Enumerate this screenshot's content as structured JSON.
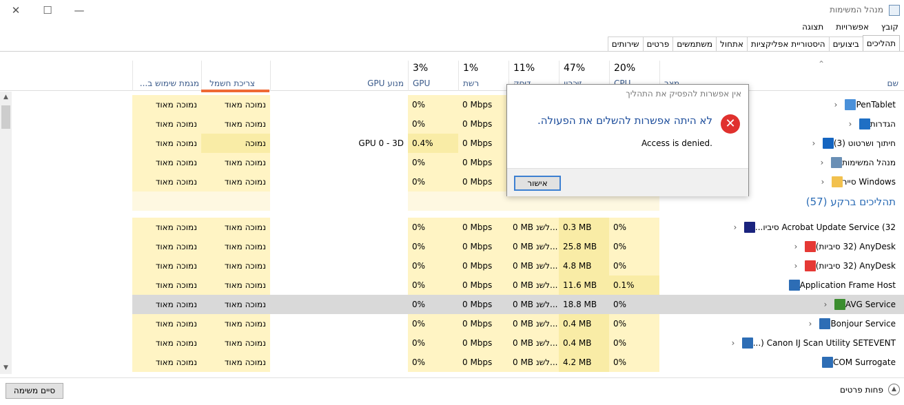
{
  "window": {
    "title": "מנהל המשימות",
    "minimize": "—",
    "maximize": "☐",
    "close": "✕"
  },
  "menu": [
    "קובץ",
    "אפשרויות",
    "תצוגה"
  ],
  "tabs": [
    "תהליכים",
    "ביצועים",
    "היסטוריית אפליקציות",
    "אתחול",
    "משתמשים",
    "פרטים",
    "שירותים"
  ],
  "columns": {
    "name": {
      "label": "שם"
    },
    "status": {
      "label": "מצב"
    },
    "cpu": {
      "pct": "20%",
      "label": "CPU"
    },
    "memory": {
      "pct": "47%",
      "label": "זיכרון"
    },
    "disk": {
      "pct": "11%",
      "label": "דיסק"
    },
    "network": {
      "pct": "1%",
      "label": "רשת"
    },
    "gpu": {
      "pct": "3%",
      "label": "GPU"
    },
    "gpu_engine": {
      "label": "מנוע GPU"
    },
    "power": {
      "label": "צריכת חשמל"
    },
    "power_trend": {
      "label": "מגמת שימוש ב..."
    }
  },
  "processes": [
    {
      "name": "PenTablet",
      "icon": "pen-tablet-icon",
      "icon_color": "#4a90d9",
      "cpu": "",
      "memory": "",
      "disk": "",
      "network": "0 Mbps",
      "gpu": "0%",
      "gpu_engine": "",
      "power": "נמוכה מאוד",
      "power_trend": "נמוכה מאוד"
    },
    {
      "name": "הגדרות",
      "icon": "settings-gear-icon",
      "icon_color": "#1f6fc4",
      "cpu": "",
      "memory": "",
      "disk": "",
      "network": "0 Mbps",
      "gpu": "0%",
      "gpu_engine": "",
      "power": "נמוכה מאוד",
      "power_trend": "נמוכה מאוד"
    },
    {
      "name": "חיתוך ושרטוט (3)",
      "icon": "snip-sketch-icon",
      "icon_color": "#1565c0",
      "cpu": "",
      "memory": "",
      "disk": "",
      "network": "0 Mbps",
      "gpu": "0.4%",
      "gpu_engine": "GPU 0 - 3D",
      "power": "נמוכה",
      "power_trend": "נמוכה מאוד"
    },
    {
      "name": "מנהל המשימות",
      "icon": "task-manager-icon",
      "icon_color": "#6a8fb5",
      "cpu": "",
      "memory": "",
      "disk": "",
      "network": "0 Mbps",
      "gpu": "0%",
      "gpu_engine": "",
      "power": "נמוכה מאוד",
      "power_trend": "נמוכה מאוד"
    },
    {
      "name": "Windows סייר",
      "icon": "file-explorer-icon",
      "icon_color": "#f2c14e",
      "cpu": "",
      "memory": "",
      "disk": "",
      "network": "0 Mbps",
      "gpu": "0%",
      "gpu_engine": "",
      "power": "נמוכה מאוד",
      "power_trend": "נמוכה מאוד"
    }
  ],
  "background_group": "תהליכים ברקע (57)",
  "background": [
    {
      "name": "Acrobat Update Service (32 סיביו...",
      "icon": "acrobat-update-icon",
      "icon_color": "#1a237e",
      "expand": true,
      "cpu": "0%",
      "memory": "0.3 MB",
      "disk": "0 MB לשנ...",
      "network": "0 Mbps",
      "gpu": "0%",
      "power": "נמוכה מאוד",
      "power_trend": "נמוכה מאוד"
    },
    {
      "name": "AnyDesk (32 סיביות)",
      "icon": "anydesk-icon",
      "icon_color": "#e53935",
      "expand": true,
      "cpu": "0%",
      "memory": "25.8 MB",
      "disk": "0 MB לשנ...",
      "network": "0 Mbps",
      "gpu": "0%",
      "power": "נמוכה מאוד",
      "power_trend": "נמוכה מאוד"
    },
    {
      "name": "AnyDesk (32 סיביות)",
      "icon": "anydesk-icon",
      "icon_color": "#e53935",
      "expand": true,
      "cpu": "0%",
      "memory": "4.8 MB",
      "disk": "0 MB לשנ...",
      "network": "0 Mbps",
      "gpu": "0%",
      "power": "נמוכה מאוד",
      "power_trend": "נמוכה מאוד"
    },
    {
      "name": "Application Frame Host",
      "icon": "app-frame-host-icon",
      "icon_color": "#2d6db5",
      "expand": false,
      "cpu": "0.1%",
      "memory": "11.6 MB",
      "disk": "0 MB לשנ...",
      "network": "0 Mbps",
      "gpu": "0%",
      "power": "נמוכה מאוד",
      "power_trend": "נמוכה מאוד"
    },
    {
      "name": "AVG Service",
      "icon": "avg-icon",
      "icon_color": "#3b8d2f",
      "expand": true,
      "selected": true,
      "cpu": "0%",
      "memory": "18.8 MB",
      "disk": "0 MB לשנ...",
      "network": "0 Mbps",
      "gpu": "0%",
      "power": "נמוכה מאוד",
      "power_trend": "נמוכה מאוד"
    },
    {
      "name": "Bonjour Service",
      "icon": "bonjour-icon",
      "icon_color": "#2d6db5",
      "expand": true,
      "cpu": "0%",
      "memory": "0.4 MB",
      "disk": "0 MB לשנ...",
      "network": "0 Mbps",
      "gpu": "0%",
      "power": "נמוכה מאוד",
      "power_trend": "נמוכה מאוד"
    },
    {
      "name": "Canon IJ Scan Utility SETEVENT (...",
      "icon": "canon-scan-icon",
      "icon_color": "#2d6db5",
      "expand": true,
      "cpu": "0%",
      "memory": "0.4 MB",
      "disk": "0 MB לשנ...",
      "network": "0 Mbps",
      "gpu": "0%",
      "power": "נמוכה מאוד",
      "power_trend": "נמוכה מאוד"
    },
    {
      "name": "COM Surrogate",
      "icon": "com-surrogate-icon",
      "icon_color": "#2d6db5",
      "expand": false,
      "cpu": "0%",
      "memory": "4.2 MB",
      "disk": "0 MB לשנ...",
      "network": "0 Mbps",
      "gpu": "0%",
      "power": "נמוכה מאוד",
      "power_trend": "נמוכה מאוד"
    }
  ],
  "footer": {
    "fewer_details": "פחות פרטים",
    "end_task": "סיים משימה"
  },
  "dialog": {
    "title": "אין אפשרות להפסיק את התהליך",
    "message": "לא היתה אפשרות להשלים את הפעולה.",
    "detail": "Access is denied.",
    "ok": "אישור",
    "error_icon": "error-icon"
  }
}
